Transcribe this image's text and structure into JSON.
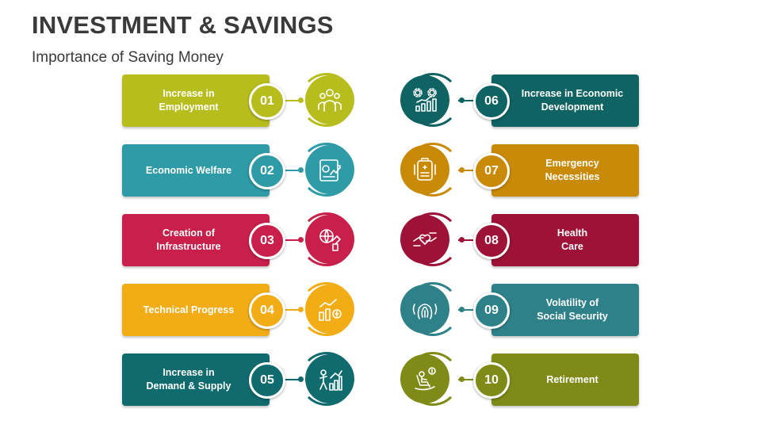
{
  "title": "INVESTMENT & SAVINGS",
  "subtitle": "Importance of Saving Money",
  "items": [
    {
      "num": "01",
      "label": "Increase in\nEmployment",
      "color": "#b8bd1e",
      "icon": "people-group-icon"
    },
    {
      "num": "02",
      "label": "Economic Welfare",
      "color": "#2e9ba6",
      "icon": "growth-document-icon"
    },
    {
      "num": "03",
      "label": "Creation of\nInfrastructure",
      "color": "#c81f4b",
      "icon": "global-building-icon"
    },
    {
      "num": "04",
      "label": "Technical Progress",
      "color": "#f2ad16",
      "icon": "progress-chart-icon"
    },
    {
      "num": "05",
      "label": "Increase in\nDemand & Supply",
      "color": "#0f6b6e",
      "icon": "demand-supply-icon"
    },
    {
      "num": "06",
      "label": "Increase in Economic\nDevelopment",
      "color": "#0f6363",
      "icon": "gears-bar-chart-icon"
    },
    {
      "num": "07",
      "label": "Emergency\nNecessities",
      "color": "#c98b07",
      "icon": "emergency-tag-icon"
    },
    {
      "num": "08",
      "label": "Health\nCare",
      "color": "#9e1237",
      "icon": "heart-hands-icon"
    },
    {
      "num": "09",
      "label": "Volatility of\nSocial Security",
      "color": "#2e8189",
      "icon": "fingerprint-security-icon"
    },
    {
      "num": "10",
      "label": "Retirement",
      "color": "#7f8b16",
      "icon": "rocking-chair-icon"
    }
  ]
}
